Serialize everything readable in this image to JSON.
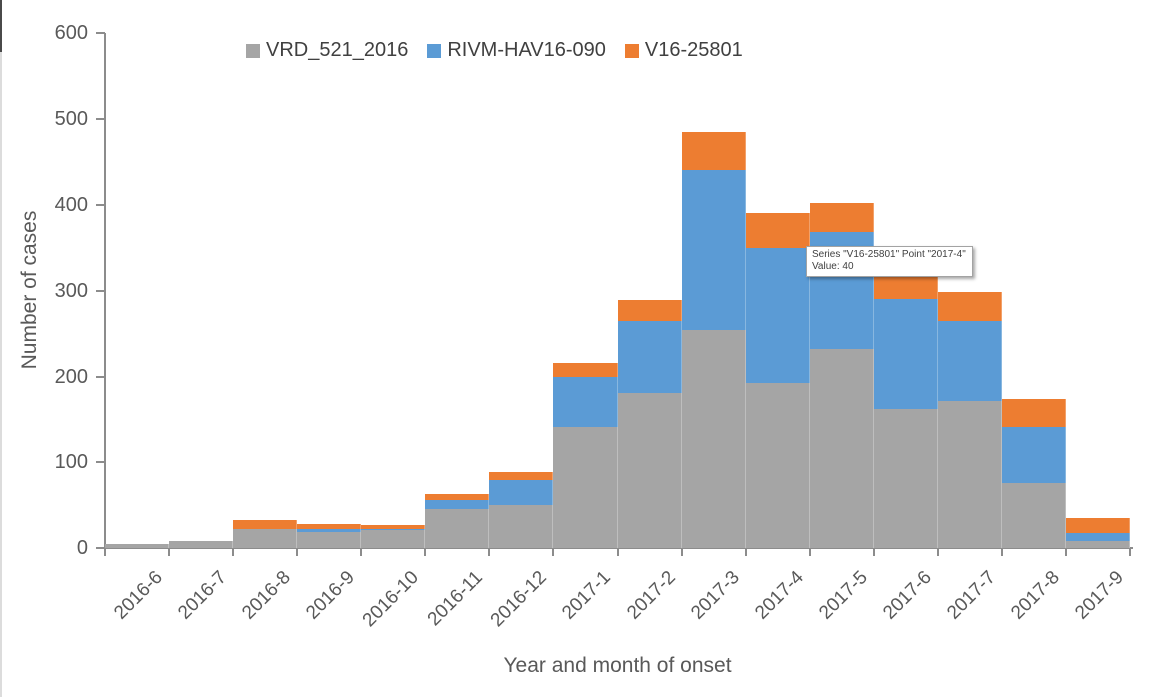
{
  "chart_data": {
    "type": "bar",
    "stacked": true,
    "categories": [
      "2016-6",
      "2016-7",
      "2016-8",
      "2016-9",
      "2016-10",
      "2016-11",
      "2016-12",
      "2017-1",
      "2017-2",
      "2017-3",
      "2017-4",
      "2017-5",
      "2017-6",
      "2017-7",
      "2017-8",
      "2017-9"
    ],
    "series": [
      {
        "name": "VRD_521_2016",
        "color": "#A5A5A5",
        "values": [
          5,
          8,
          23,
          19,
          21,
          46,
          50,
          141,
          181,
          254,
          193,
          232,
          162,
          172,
          76,
          9
        ]
      },
      {
        "name": "RIVM-HAV16-090",
        "color": "#5B9BD5",
        "values": [
          0,
          0,
          0,
          4,
          2,
          10,
          30,
          58,
          84,
          186,
          157,
          136,
          128,
          93,
          65,
          9
        ]
      },
      {
        "name": "V16-25801",
        "color": "#ED7D31",
        "values": [
          0,
          0,
          10,
          5,
          4,
          7,
          9,
          17,
          24,
          45,
          40,
          34,
          26,
          34,
          33,
          17
        ]
      }
    ],
    "title": "",
    "xlabel": "Year and month of onset",
    "ylabel": "Number of cases",
    "ylim": [
      0,
      600
    ],
    "yticks": [
      0,
      100,
      200,
      300,
      400,
      500,
      600
    ],
    "grid": false,
    "legend_position": "top"
  },
  "tooltip": {
    "line1": "Series \"V16-25801\" Point \"2017-4\"",
    "line2": "Value: 40"
  }
}
